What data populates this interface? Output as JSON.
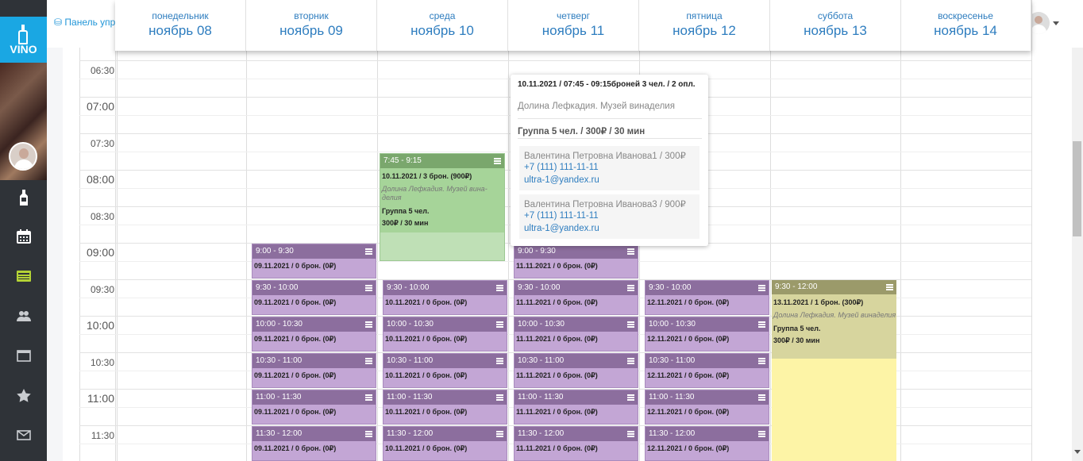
{
  "brand": {
    "logo_text": "VINO"
  },
  "topbar": {
    "panel_link": "Панель упр"
  },
  "days": [
    {
      "weekday": "понедельник",
      "date": "ноябрь 08"
    },
    {
      "weekday": "вторник",
      "date": "ноябрь 09"
    },
    {
      "weekday": "среда",
      "date": "ноябрь 10"
    },
    {
      "weekday": "четверг",
      "date": "ноябрь 11"
    },
    {
      "weekday": "пятница",
      "date": "ноябрь 12"
    },
    {
      "weekday": "суббота",
      "date": "ноябрь 13"
    },
    {
      "weekday": "воскресенье",
      "date": "ноябрь 14"
    }
  ],
  "times": [
    "06:30",
    "07:00",
    "07:30",
    "08:00",
    "08:30",
    "09:00",
    "09:30",
    "10:00",
    "10:30",
    "11:00",
    "11:30"
  ],
  "sidebar_icons": [
    "bottle-icon",
    "calendar-icon",
    "ticket-icon",
    "users-icon",
    "window-icon",
    "star-icon",
    "mail-icon"
  ],
  "events": {
    "wed_green": {
      "time": "7:45 - 9:15",
      "line1": "10.11.2021 / 3 брон. (900₽)",
      "location": "Долина Лефкадия. Музей винa­делия",
      "group": "Группа 5 чел.",
      "price": "300₽ / 30 мин"
    },
    "sat_yellow": {
      "time": "9:30 - 12:00",
      "line1": "13.11.2021 / 1 брон. (300₽)",
      "location": "Долина Лефкадия. Музей винa­делия",
      "group": "Группа 5 чел.",
      "price": "300₽ / 30 мин"
    },
    "slots": [
      {
        "time": "9:00 - 9:30",
        "days": [
          {
            "key": "tue",
            "text": "09.11.2021 / 0 брон. (0₽)"
          },
          {
            "key": "thu",
            "text": "11.11.2021 / 0 брон. (0₽)"
          }
        ]
      },
      {
        "time": "9:30 - 10:00",
        "days": [
          {
            "key": "tue",
            "text": "09.11.2021 / 0 брон. (0₽)"
          },
          {
            "key": "wed",
            "text": "10.11.2021 / 0 брон. (0₽)"
          },
          {
            "key": "thu",
            "text": "11.11.2021 / 0 брон. (0₽)"
          },
          {
            "key": "fri",
            "text": "12.11.2021 / 0 брон. (0₽)"
          }
        ]
      },
      {
        "time": "10:00 - 10:30",
        "days": [
          {
            "key": "tue",
            "text": "09.11.2021 / 0 брон. (0₽)"
          },
          {
            "key": "wed",
            "text": "10.11.2021 / 0 брон. (0₽)"
          },
          {
            "key": "thu",
            "text": "11.11.2021 / 0 брон. (0₽)"
          },
          {
            "key": "fri",
            "text": "12.11.2021 / 0 брон. (0₽)"
          }
        ]
      },
      {
        "time": "10:30 - 11:00",
        "days": [
          {
            "key": "tue",
            "text": "09.11.2021 / 0 брон. (0₽)"
          },
          {
            "key": "wed",
            "text": "10.11.2021 / 0 брон. (0₽)"
          },
          {
            "key": "thu",
            "text": "11.11.2021 / 0 брон. (0₽)"
          },
          {
            "key": "fri",
            "text": "12.11.2021 / 0 брон. (0₽)"
          }
        ]
      },
      {
        "time": "11:00 - 11:30",
        "days": [
          {
            "key": "tue",
            "text": "09.11.2021 / 0 брон. (0₽)"
          },
          {
            "key": "wed",
            "text": "10.11.2021 / 0 брон. (0₽)"
          },
          {
            "key": "thu",
            "text": "11.11.2021 / 0 брон. (0₽)"
          },
          {
            "key": "fri",
            "text": "12.11.2021 / 0 брон. (0₽)"
          }
        ]
      },
      {
        "time": "11:30 - 12:00",
        "days": [
          {
            "key": "tue",
            "text": "09.11.2021 / 0 брон. (0₽)"
          },
          {
            "key": "wed",
            "text": "10.11.2021 / 0 брон. (0₽)"
          },
          {
            "key": "thu",
            "text": "11.11.2021 / 0 брон. (0₽)"
          },
          {
            "key": "fri",
            "text": "12.11.2021 / 0 брон. (0₽)"
          }
        ]
      }
    ]
  },
  "popup": {
    "title": "10.11.2021 / 07:45 - 09:15броней 3 чел. / 2 опл.",
    "location": "Долина Лефкадия. Музей винa­делия",
    "group": "Группа 5 чел. / 300₽ / 30 мин",
    "guests": [
      {
        "name": "Валентина Петровна Иванова1 / 300₽",
        "phone": "+7 (111) 111-11-11",
        "email": "ultra-1@yandex.ru"
      },
      {
        "name": "Валентина Петровна Иванова3 / 900₽",
        "phone": "+7 (111) 111-11-11",
        "email": "ultra-1@yandex.ru"
      }
    ]
  },
  "colors": {
    "accent": "#1aa7e3",
    "sidebar": "#2f3338",
    "slot_purple": "#c3a6d5",
    "slot_green": "#bfe0b6",
    "slot_yellow": "#fdf4a6"
  }
}
